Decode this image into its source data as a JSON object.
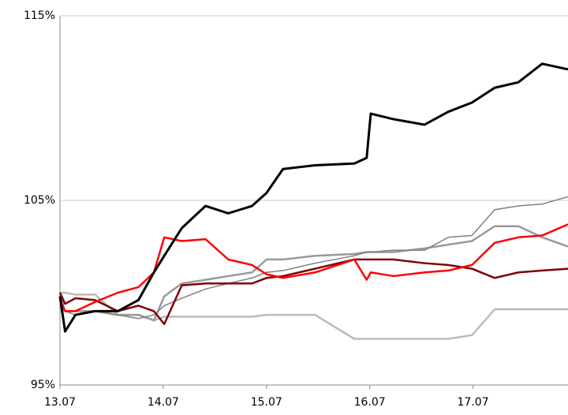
{
  "chart_data": {
    "type": "line",
    "x": [
      13,
      13.05,
      13.15,
      13.34,
      13.56,
      13.76,
      13.91,
      14.01,
      14.18,
      14.41,
      14.63,
      14.86,
      15.0,
      15.16,
      15.47,
      15.85,
      15.97,
      16.01,
      16.23,
      16.53,
      16.76,
      16.99,
      17.21,
      17.44,
      17.67,
      17.92
    ],
    "xlim": [
      13,
      17.92
    ],
    "xticks": [
      {
        "value": 13,
        "label": "13.07"
      },
      {
        "value": 14,
        "label": "14.07"
      },
      {
        "value": 15,
        "label": "15.07"
      },
      {
        "value": 16,
        "label": "16.07"
      },
      {
        "value": 17,
        "label": "17.07"
      }
    ],
    "ylim": [
      95,
      115
    ],
    "yticks": [
      {
        "value": 95,
        "label": "95%"
      },
      {
        "value": 105,
        "label": "105%"
      },
      {
        "value": 115,
        "label": "115%"
      }
    ],
    "grid": true,
    "series": [
      {
        "color": "#bbbbbb",
        "values": [
          100.0,
          100.0,
          99.9,
          99.9,
          98.8,
          98.8,
          98.5,
          98.7,
          98.7,
          98.7,
          98.7,
          98.7,
          98.8,
          98.8,
          98.8,
          97.5,
          97.5,
          97.5,
          97.5,
          97.5,
          97.5,
          97.7,
          99.1,
          99.1,
          99.1,
          99.1
        ]
      },
      {
        "color": "#999999",
        "values": [
          99.2,
          99.0,
          99.0,
          99.0,
          98.8,
          98.8,
          98.5,
          99.8,
          100.5,
          100.7,
          100.9,
          101.1,
          101.8,
          101.8,
          102.0,
          102.1,
          102.2,
          102.2,
          102.2,
          102.4,
          102.6,
          102.8,
          103.6,
          103.6,
          103.0,
          102.5
        ]
      },
      {
        "color": "#808080",
        "values": [
          100.0,
          99.0,
          98.8,
          99.0,
          98.8,
          98.6,
          98.8,
          99.3,
          99.7,
          100.2,
          100.5,
          100.8,
          101.1,
          101.2,
          101.6,
          102.0,
          102.2,
          102.2,
          102.3,
          102.3,
          103.0,
          103.1,
          104.5,
          104.7,
          104.8,
          105.2
        ]
      },
      {
        "color": "#800000",
        "values": [
          100.0,
          99.4,
          99.7,
          99.6,
          99.0,
          99.3,
          99.0,
          98.3,
          100.4,
          100.5,
          100.5,
          100.5,
          100.8,
          100.9,
          101.3,
          101.8,
          101.8,
          101.8,
          101.8,
          101.6,
          101.5,
          101.3,
          100.8,
          101.1,
          101.2,
          101.3
        ]
      },
      {
        "color": "#ff0000",
        "values": [
          99.6,
          99.0,
          99.0,
          99.5,
          100.0,
          100.3,
          101.1,
          103.0,
          102.8,
          102.9,
          101.8,
          101.5,
          101.0,
          100.8,
          101.1,
          101.8,
          100.7,
          101.1,
          100.9,
          101.1,
          101.2,
          101.5,
          102.7,
          103.0,
          103.1,
          103.7
        ]
      },
      {
        "color": "#000000",
        "values": [
          99.8,
          97.9,
          98.8,
          99.0,
          99.0,
          99.6,
          101.1,
          102.0,
          103.5,
          104.7,
          104.3,
          104.7,
          105.4,
          106.7,
          106.9,
          107.0,
          107.3,
          109.7,
          109.4,
          109.1,
          109.8,
          110.3,
          111.1,
          111.4,
          112.4,
          112.1
        ]
      }
    ]
  }
}
